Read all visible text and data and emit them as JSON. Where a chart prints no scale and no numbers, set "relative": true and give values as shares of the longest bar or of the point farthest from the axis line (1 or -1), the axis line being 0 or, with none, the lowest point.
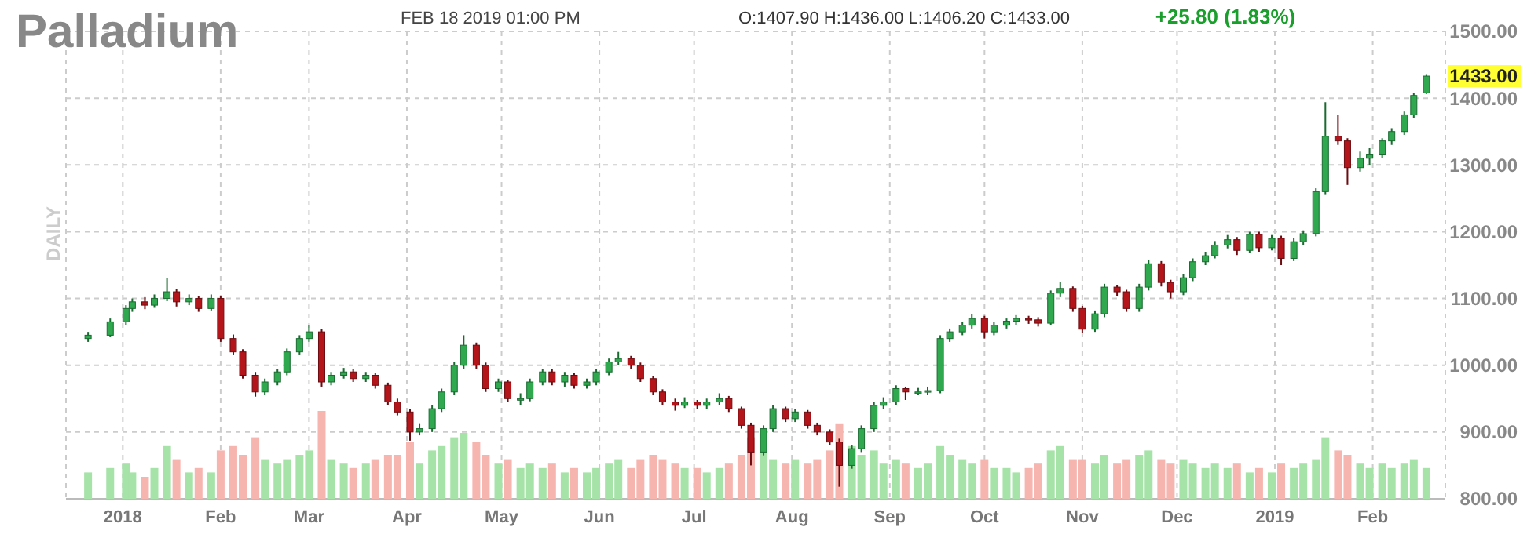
{
  "chart_data": [
    {
      "type": "candlestick",
      "title": "Palladium",
      "subtitle": "FEB 18 2019 01:00 PM",
      "ylabel": "DAILY",
      "annotations": [
        "O:1407.90 H:1436.00 L:1406.20 C:1433.00",
        "+25.80 (1.83%)",
        "1433.00"
      ],
      "x": [
        "2017-12-21",
        "2017-12-28",
        "2018-01-02",
        "2018-01-04",
        "2018-01-08",
        "2018-01-11",
        "2018-01-15",
        "2018-01-18",
        "2018-01-22",
        "2018-01-25",
        "2018-01-29",
        "2018-02-01",
        "2018-02-05",
        "2018-02-08",
        "2018-02-12",
        "2018-02-15",
        "2018-02-19",
        "2018-02-22",
        "2018-02-26",
        "2018-03-01",
        "2018-03-05",
        "2018-03-08",
        "2018-03-12",
        "2018-03-15",
        "2018-03-19",
        "2018-03-22",
        "2018-03-26",
        "2018-03-29",
        "2018-04-02",
        "2018-04-05",
        "2018-04-09",
        "2018-04-12",
        "2018-04-16",
        "2018-04-19",
        "2018-04-23",
        "2018-04-26",
        "2018-04-30",
        "2018-05-03",
        "2018-05-07",
        "2018-05-10",
        "2018-05-14",
        "2018-05-17",
        "2018-05-21",
        "2018-05-24",
        "2018-05-28",
        "2018-05-31",
        "2018-06-04",
        "2018-06-07",
        "2018-06-11",
        "2018-06-14",
        "2018-06-18",
        "2018-06-21",
        "2018-06-25",
        "2018-06-28",
        "2018-07-02",
        "2018-07-05",
        "2018-07-09",
        "2018-07-12",
        "2018-07-16",
        "2018-07-19",
        "2018-07-23",
        "2018-07-26",
        "2018-07-30",
        "2018-08-02",
        "2018-08-06",
        "2018-08-09",
        "2018-08-13",
        "2018-08-16",
        "2018-08-20",
        "2018-08-23",
        "2018-08-27",
        "2018-08-30",
        "2018-09-03",
        "2018-09-06",
        "2018-09-10",
        "2018-09-13",
        "2018-09-17",
        "2018-09-20",
        "2018-09-24",
        "2018-09-27",
        "2018-10-01",
        "2018-10-04",
        "2018-10-08",
        "2018-10-11",
        "2018-10-15",
        "2018-10-18",
        "2018-10-22",
        "2018-10-25",
        "2018-10-29",
        "2018-11-01",
        "2018-11-05",
        "2018-11-08",
        "2018-11-12",
        "2018-11-15",
        "2018-11-19",
        "2018-11-22",
        "2018-11-26",
        "2018-11-29",
        "2018-12-03",
        "2018-12-06",
        "2018-12-10",
        "2018-12-13",
        "2018-12-17",
        "2018-12-20",
        "2018-12-24",
        "2018-12-27",
        "2018-12-31",
        "2019-01-03",
        "2019-01-07",
        "2019-01-10",
        "2019-01-14",
        "2019-01-17",
        "2019-01-21",
        "2019-01-24",
        "2019-01-28",
        "2019-01-31",
        "2019-02-04",
        "2019-02-07",
        "2019-02-11",
        "2019-02-14",
        "2019-02-18"
      ],
      "ohlc": [
        [
          1040,
          1050,
          1035,
          1045
        ],
        [
          1045,
          1070,
          1042,
          1065
        ],
        [
          1065,
          1090,
          1060,
          1085
        ],
        [
          1085,
          1100,
          1080,
          1095
        ],
        [
          1095,
          1102,
          1084,
          1090
        ],
        [
          1090,
          1106,
          1086,
          1100
        ],
        [
          1100,
          1131,
          1096,
          1110
        ],
        [
          1110,
          1114,
          1088,
          1095
        ],
        [
          1095,
          1106,
          1090,
          1100
        ],
        [
          1100,
          1104,
          1080,
          1085
        ],
        [
          1085,
          1106,
          1082,
          1100
        ],
        [
          1100,
          1103,
          1035,
          1040
        ],
        [
          1040,
          1046,
          1015,
          1020
        ],
        [
          1020,
          1024,
          980,
          985
        ],
        [
          985,
          990,
          953,
          960
        ],
        [
          960,
          980,
          955,
          975
        ],
        [
          975,
          995,
          970,
          990
        ],
        [
          990,
          1025,
          985,
          1020
        ],
        [
          1020,
          1045,
          1015,
          1040
        ],
        [
          1040,
          1060,
          1035,
          1050
        ],
        [
          1050,
          1054,
          968,
          975
        ],
        [
          975,
          990,
          970,
          985
        ],
        [
          985,
          996,
          980,
          990
        ],
        [
          990,
          994,
          975,
          980
        ],
        [
          980,
          990,
          975,
          985
        ],
        [
          985,
          988,
          965,
          970
        ],
        [
          970,
          974,
          940,
          945
        ],
        [
          945,
          950,
          925,
          930
        ],
        [
          930,
          934,
          887,
          900
        ],
        [
          900,
          912,
          895,
          905
        ],
        [
          905,
          940,
          900,
          935
        ],
        [
          935,
          965,
          930,
          960
        ],
        [
          960,
          1005,
          955,
          1000
        ],
        [
          1000,
          1045,
          995,
          1030
        ],
        [
          1030,
          1034,
          995,
          1000
        ],
        [
          1000,
          1004,
          960,
          965
        ],
        [
          965,
          980,
          960,
          975
        ],
        [
          975,
          978,
          945,
          950
        ],
        [
          950,
          958,
          940,
          950
        ],
        [
          950,
          980,
          946,
          975
        ],
        [
          975,
          995,
          970,
          990
        ],
        [
          990,
          994,
          970,
          975
        ],
        [
          975,
          990,
          968,
          985
        ],
        [
          985,
          988,
          965,
          970
        ],
        [
          970,
          980,
          965,
          975
        ],
        [
          975,
          995,
          970,
          990
        ],
        [
          990,
          1010,
          985,
          1005
        ],
        [
          1005,
          1020,
          1000,
          1010
        ],
        [
          1010,
          1014,
          995,
          1000
        ],
        [
          1000,
          1004,
          975,
          980
        ],
        [
          980,
          984,
          955,
          960
        ],
        [
          960,
          964,
          940,
          945
        ],
        [
          945,
          950,
          932,
          940
        ],
        [
          940,
          952,
          936,
          945
        ],
        [
          945,
          948,
          935,
          940
        ],
        [
          940,
          950,
          935,
          945
        ],
        [
          945,
          958,
          940,
          950
        ],
        [
          950,
          954,
          930,
          935
        ],
        [
          935,
          938,
          905,
          910
        ],
        [
          910,
          914,
          850,
          870
        ],
        [
          870,
          910,
          865,
          905
        ],
        [
          905,
          940,
          900,
          935
        ],
        [
          935,
          938,
          915,
          920
        ],
        [
          920,
          935,
          915,
          930
        ],
        [
          930,
          933,
          905,
          910
        ],
        [
          910,
          914,
          895,
          900
        ],
        [
          900,
          904,
          880,
          885
        ],
        [
          885,
          890,
          818,
          850
        ],
        [
          850,
          880,
          845,
          875
        ],
        [
          875,
          910,
          870,
          905
        ],
        [
          905,
          945,
          900,
          940
        ],
        [
          940,
          952,
          935,
          945
        ],
        [
          945,
          970,
          940,
          965
        ],
        [
          965,
          968,
          948,
          960
        ],
        [
          960,
          966,
          955,
          960
        ],
        [
          960,
          968,
          955,
          962
        ],
        [
          962,
          1045,
          958,
          1040
        ],
        [
          1040,
          1055,
          1035,
          1050
        ],
        [
          1050,
          1065,
          1045,
          1060
        ],
        [
          1060,
          1077,
          1055,
          1070
        ],
        [
          1070,
          1074,
          1040,
          1050
        ],
        [
          1050,
          1065,
          1045,
          1060
        ],
        [
          1060,
          1070,
          1055,
          1066
        ],
        [
          1066,
          1075,
          1060,
          1070
        ],
        [
          1070,
          1074,
          1062,
          1068
        ],
        [
          1068,
          1072,
          1058,
          1063
        ],
        [
          1063,
          1112,
          1060,
          1108
        ],
        [
          1108,
          1125,
          1102,
          1115
        ],
        [
          1115,
          1118,
          1080,
          1085
        ],
        [
          1085,
          1089,
          1048,
          1054
        ],
        [
          1054,
          1082,
          1050,
          1077
        ],
        [
          1077,
          1122,
          1072,
          1117
        ],
        [
          1117,
          1120,
          1104,
          1110
        ],
        [
          1110,
          1113,
          1080,
          1085
        ],
        [
          1085,
          1122,
          1080,
          1117
        ],
        [
          1117,
          1158,
          1112,
          1152
        ],
        [
          1152,
          1156,
          1118,
          1124
        ],
        [
          1124,
          1128,
          1100,
          1110
        ],
        [
          1110,
          1136,
          1105,
          1131
        ],
        [
          1131,
          1160,
          1126,
          1155
        ],
        [
          1155,
          1170,
          1150,
          1164
        ],
        [
          1164,
          1186,
          1160,
          1180
        ],
        [
          1180,
          1195,
          1175,
          1188
        ],
        [
          1188,
          1192,
          1165,
          1172
        ],
        [
          1172,
          1200,
          1168,
          1196
        ],
        [
          1196,
          1200,
          1170,
          1176
        ],
        [
          1176,
          1195,
          1172,
          1190
        ],
        [
          1190,
          1194,
          1150,
          1160
        ],
        [
          1160,
          1190,
          1156,
          1185
        ],
        [
          1185,
          1202,
          1180,
          1197
        ],
        [
          1197,
          1265,
          1193,
          1260
        ],
        [
          1260,
          1394,
          1255,
          1343
        ],
        [
          1343,
          1375,
          1330,
          1336
        ],
        [
          1336,
          1340,
          1270,
          1296
        ],
        [
          1296,
          1320,
          1290,
          1310
        ],
        [
          1310,
          1325,
          1300,
          1315
        ],
        [
          1315,
          1340,
          1310,
          1336
        ],
        [
          1336,
          1355,
          1330,
          1350
        ],
        [
          1350,
          1380,
          1345,
          1375
        ],
        [
          1375,
          1408,
          1370,
          1404
        ],
        [
          1407.9,
          1436,
          1406.2,
          1433
        ]
      ],
      "xlim": [
        "2017-12-14",
        "2019-02-24"
      ],
      "xticks": [
        {
          "value": "2018-01-01",
          "label": "2018"
        },
        {
          "value": "2018-02-01",
          "label": "Feb"
        },
        {
          "value": "2018-03-01",
          "label": "Mar"
        },
        {
          "value": "2018-04-01",
          "label": "Apr"
        },
        {
          "value": "2018-05-01",
          "label": "May"
        },
        {
          "value": "2018-06-01",
          "label": "Jun"
        },
        {
          "value": "2018-07-01",
          "label": "Jul"
        },
        {
          "value": "2018-08-01",
          "label": "Aug"
        },
        {
          "value": "2018-09-01",
          "label": "Sep"
        },
        {
          "value": "2018-10-01",
          "label": "Oct"
        },
        {
          "value": "2018-11-01",
          "label": "Nov"
        },
        {
          "value": "2018-12-01",
          "label": "Dec"
        },
        {
          "value": "2019-01-01",
          "label": "2019"
        },
        {
          "value": "2019-02-01",
          "label": "Feb"
        }
      ],
      "ylim": [
        800,
        1500
      ],
      "yticks": [
        {
          "value": 800,
          "label": "800.00"
        },
        {
          "value": 900,
          "label": "900.00"
        },
        {
          "value": 1000,
          "label": "1000.00"
        },
        {
          "value": 1100,
          "label": "1100.00"
        },
        {
          "value": 1200,
          "label": "1200.00"
        },
        {
          "value": 1300,
          "label": "1300.00"
        },
        {
          "value": 1400,
          "label": "1400.00"
        },
        {
          "value": 1500,
          "label": "1500.00"
        }
      ],
      "grid": true
    },
    {
      "type": "bar",
      "relative": true,
      "xlim": [
        "2017-12-14",
        "2019-02-24"
      ],
      "x": [
        "2017-12-21",
        "2017-12-28",
        "2018-01-02",
        "2018-01-04",
        "2018-01-08",
        "2018-01-11",
        "2018-01-15",
        "2018-01-18",
        "2018-01-22",
        "2018-01-25",
        "2018-01-29",
        "2018-02-01",
        "2018-02-05",
        "2018-02-08",
        "2018-02-12",
        "2018-02-15",
        "2018-02-19",
        "2018-02-22",
        "2018-02-26",
        "2018-03-01",
        "2018-03-05",
        "2018-03-08",
        "2018-03-12",
        "2018-03-15",
        "2018-03-19",
        "2018-03-22",
        "2018-03-26",
        "2018-03-29",
        "2018-04-02",
        "2018-04-05",
        "2018-04-09",
        "2018-04-12",
        "2018-04-16",
        "2018-04-19",
        "2018-04-23",
        "2018-04-26",
        "2018-04-30",
        "2018-05-03",
        "2018-05-07",
        "2018-05-10",
        "2018-05-14",
        "2018-05-17",
        "2018-05-21",
        "2018-05-24",
        "2018-05-28",
        "2018-05-31",
        "2018-06-04",
        "2018-06-07",
        "2018-06-11",
        "2018-06-14",
        "2018-06-18",
        "2018-06-21",
        "2018-06-25",
        "2018-06-28",
        "2018-07-02",
        "2018-07-05",
        "2018-07-09",
        "2018-07-12",
        "2018-07-16",
        "2018-07-19",
        "2018-07-23",
        "2018-07-26",
        "2018-07-30",
        "2018-08-02",
        "2018-08-06",
        "2018-08-09",
        "2018-08-13",
        "2018-08-16",
        "2018-08-20",
        "2018-08-23",
        "2018-08-27",
        "2018-08-30",
        "2018-09-03",
        "2018-09-06",
        "2018-09-10",
        "2018-09-13",
        "2018-09-17",
        "2018-09-20",
        "2018-09-24",
        "2018-09-27",
        "2018-10-01",
        "2018-10-04",
        "2018-10-08",
        "2018-10-11",
        "2018-10-15",
        "2018-10-18",
        "2018-10-22",
        "2018-10-25",
        "2018-10-29",
        "2018-11-01",
        "2018-11-05",
        "2018-11-08",
        "2018-11-12",
        "2018-11-15",
        "2018-11-19",
        "2018-11-22",
        "2018-11-26",
        "2018-11-29",
        "2018-12-03",
        "2018-12-06",
        "2018-12-10",
        "2018-12-13",
        "2018-12-17",
        "2018-12-20",
        "2018-12-24",
        "2018-12-27",
        "2018-12-31",
        "2019-01-03",
        "2019-01-07",
        "2019-01-10",
        "2019-01-14",
        "2019-01-17",
        "2019-01-21",
        "2019-01-24",
        "2019-01-28",
        "2019-01-31",
        "2019-02-04",
        "2019-02-07",
        "2019-02-11",
        "2019-02-14",
        "2019-02-18"
      ],
      "values": [
        0.3,
        0.35,
        0.4,
        0.3,
        0.25,
        0.35,
        0.6,
        0.45,
        0.3,
        0.35,
        0.3,
        0.55,
        0.6,
        0.5,
        0.7,
        0.45,
        0.4,
        0.45,
        0.5,
        0.55,
        1,
        0.45,
        0.4,
        0.35,
        0.4,
        0.45,
        0.5,
        0.5,
        0.65,
        0.4,
        0.55,
        0.6,
        0.7,
        0.75,
        0.65,
        0.5,
        0.4,
        0.45,
        0.35,
        0.4,
        0.35,
        0.4,
        0.3,
        0.35,
        0.3,
        0.35,
        0.4,
        0.45,
        0.35,
        0.45,
        0.5,
        0.45,
        0.4,
        0.35,
        0.35,
        0.3,
        0.35,
        0.4,
        0.5,
        0.7,
        0.55,
        0.45,
        0.4,
        0.45,
        0.4,
        0.45,
        0.55,
        0.85,
        0.6,
        0.5,
        0.55,
        0.4,
        0.45,
        0.4,
        0.35,
        0.4,
        0.6,
        0.5,
        0.45,
        0.4,
        0.45,
        0.35,
        0.35,
        0.3,
        0.35,
        0.4,
        0.55,
        0.6,
        0.45,
        0.45,
        0.4,
        0.5,
        0.4,
        0.45,
        0.5,
        0.55,
        0.45,
        0.4,
        0.45,
        0.4,
        0.35,
        0.4,
        0.35,
        0.4,
        0.3,
        0.35,
        0.3,
        0.4,
        0.35,
        0.4,
        0.45,
        0.7,
        0.55,
        0.5,
        0.4,
        0.35,
        0.4,
        0.35,
        0.4,
        0.45,
        0.35
      ],
      "colors": [
        "#a6e3a8",
        "#a6e3a8",
        "#a6e3a8",
        "#a6e3a8",
        "#f7b5b0",
        "#a6e3a8",
        "#a6e3a8",
        "#f7b5b0",
        "#a6e3a8",
        "#f7b5b0",
        "#a6e3a8",
        "#f7b5b0",
        "#f7b5b0",
        "#f7b5b0",
        "#f7b5b0",
        "#a6e3a8",
        "#a6e3a8",
        "#a6e3a8",
        "#a6e3a8",
        "#a6e3a8",
        "#f7b5b0",
        "#a6e3a8",
        "#a6e3a8",
        "#f7b5b0",
        "#a6e3a8",
        "#f7b5b0",
        "#f7b5b0",
        "#f7b5b0",
        "#f7b5b0",
        "#a6e3a8",
        "#a6e3a8",
        "#a6e3a8",
        "#a6e3a8",
        "#a6e3a8",
        "#f7b5b0",
        "#f7b5b0",
        "#a6e3a8",
        "#f7b5b0",
        "#a6e3a8",
        "#a6e3a8",
        "#a6e3a8",
        "#f7b5b0",
        "#a6e3a8",
        "#f7b5b0",
        "#a6e3a8",
        "#a6e3a8",
        "#a6e3a8",
        "#a6e3a8",
        "#f7b5b0",
        "#f7b5b0",
        "#f7b5b0",
        "#f7b5b0",
        "#f7b5b0",
        "#a6e3a8",
        "#f7b5b0",
        "#a6e3a8",
        "#a6e3a8",
        "#f7b5b0",
        "#f7b5b0",
        "#f7b5b0",
        "#a6e3a8",
        "#a6e3a8",
        "#f7b5b0",
        "#a6e3a8",
        "#f7b5b0",
        "#f7b5b0",
        "#f7b5b0",
        "#f7b5b0",
        "#a6e3a8",
        "#a6e3a8",
        "#a6e3a8",
        "#a6e3a8",
        "#a6e3a8",
        "#f7b5b0",
        "#a6e3a8",
        "#a6e3a8",
        "#a6e3a8",
        "#a6e3a8",
        "#a6e3a8",
        "#a6e3a8",
        "#f7b5b0",
        "#a6e3a8",
        "#a6e3a8",
        "#a6e3a8",
        "#f7b5b0",
        "#f7b5b0",
        "#a6e3a8",
        "#a6e3a8",
        "#f7b5b0",
        "#f7b5b0",
        "#a6e3a8",
        "#a6e3a8",
        "#f7b5b0",
        "#f7b5b0",
        "#a6e3a8",
        "#a6e3a8",
        "#f7b5b0",
        "#f7b5b0",
        "#a6e3a8",
        "#a6e3a8",
        "#a6e3a8",
        "#a6e3a8",
        "#a6e3a8",
        "#f7b5b0",
        "#a6e3a8",
        "#f7b5b0",
        "#a6e3a8",
        "#f7b5b0",
        "#a6e3a8",
        "#a6e3a8",
        "#a6e3a8",
        "#a6e3a8",
        "#f7b5b0",
        "#f7b5b0",
        "#a6e3a8",
        "#a6e3a8",
        "#a6e3a8",
        "#a6e3a8",
        "#a6e3a8",
        "#a6e3a8",
        "#a6e3a8"
      ]
    }
  ]
}
